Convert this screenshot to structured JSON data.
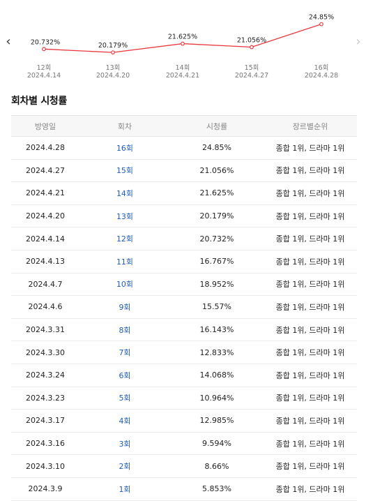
{
  "chart_data": {
    "type": "line",
    "x": [
      "12회",
      "13회",
      "14회",
      "15회",
      "16회"
    ],
    "dates": [
      "2024.4.14",
      "2024.4.20",
      "2024.4.21",
      "2024.4.27",
      "2024.4.28"
    ],
    "values": [
      20.732,
      20.179,
      21.625,
      21.056,
      24.85
    ],
    "value_labels": [
      "20.732%",
      "20.179%",
      "21.625%",
      "21.056%",
      "24.85%"
    ],
    "ylim": [
      19.5,
      25.5
    ],
    "line_color": "#e8383d"
  },
  "nav": {
    "prev_icon": "‹",
    "next_icon": "›"
  },
  "section": {
    "title": "회차별 시청률"
  },
  "table": {
    "headers": [
      "방영일",
      "회차",
      "시청률",
      "장르별순위"
    ],
    "rows": [
      [
        "2024.4.28",
        "16회",
        "24.85%",
        "종합 1위, 드라마 1위"
      ],
      [
        "2024.4.27",
        "15회",
        "21.056%",
        "종합 1위, 드라마 1위"
      ],
      [
        "2024.4.21",
        "14회",
        "21.625%",
        "종합 1위, 드라마 1위"
      ],
      [
        "2024.4.20",
        "13회",
        "20.179%",
        "종합 1위, 드라마 1위"
      ],
      [
        "2024.4.14",
        "12회",
        "20.732%",
        "종합 1위, 드라마 1위"
      ],
      [
        "2024.4.13",
        "11회",
        "16.767%",
        "종합 1위, 드라마 1위"
      ],
      [
        "2024.4.7",
        "10회",
        "18.952%",
        "종합 1위, 드라마 1위"
      ],
      [
        "2024.4.6",
        "9회",
        "15.57%",
        "종합 1위, 드라마 1위"
      ],
      [
        "2024.3.31",
        "8회",
        "16.143%",
        "종합 1위, 드라마 1위"
      ],
      [
        "2024.3.30",
        "7회",
        "12.833%",
        "종합 1위, 드라마 1위"
      ],
      [
        "2024.3.24",
        "6회",
        "14.068%",
        "종합 1위, 드라마 1위"
      ],
      [
        "2024.3.23",
        "5회",
        "10.964%",
        "종합 1위, 드라마 1위"
      ],
      [
        "2024.3.17",
        "4회",
        "12.985%",
        "종합 1위, 드라마 1위"
      ],
      [
        "2024.3.16",
        "3회",
        "9.594%",
        "종합 1위, 드라마 1위"
      ],
      [
        "2024.3.10",
        "2회",
        "8.66%",
        "종합 1위, 드라마 1위"
      ],
      [
        "2024.3.9",
        "1회",
        "5.853%",
        "종합 1위, 드라마 1위"
      ]
    ]
  }
}
